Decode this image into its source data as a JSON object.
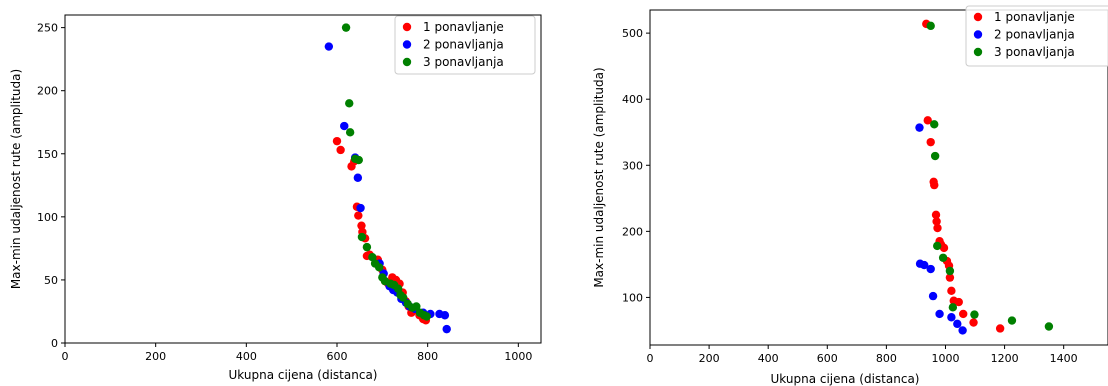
{
  "chart_data": [
    {
      "type": "scatter",
      "xlabel": "Ukupna cijena (distanca)",
      "ylabel": "Max-min udaljenost rute (amplituda)",
      "xlim": [
        0,
        1050
      ],
      "ylim": [
        0,
        260
      ],
      "xticks": [
        0,
        200,
        400,
        600,
        800,
        1000
      ],
      "yticks": [
        0,
        50,
        100,
        150,
        200,
        250
      ],
      "grid": false,
      "legend_position": "top-right",
      "series": [
        {
          "name": "1 ponavljanje",
          "color": "#ff0000",
          "points": [
            [
              600,
              160
            ],
            [
              608,
              153
            ],
            [
              632,
              140
            ],
            [
              638,
              144
            ],
            [
              644,
              108
            ],
            [
              647,
              101
            ],
            [
              654,
              93
            ],
            [
              656,
              88
            ],
            [
              662,
              83
            ],
            [
              666,
              69
            ],
            [
              672,
              70
            ],
            [
              690,
              66
            ],
            [
              700,
              58
            ],
            [
              706,
              49
            ],
            [
              713,
              47
            ],
            [
              722,
              52
            ],
            [
              730,
              50
            ],
            [
              738,
              47
            ],
            [
              745,
              40
            ],
            [
              752,
              33
            ],
            [
              758,
              29
            ],
            [
              764,
              24
            ],
            [
              773,
              26
            ],
            [
              782,
              22
            ],
            [
              790,
              19
            ],
            [
              796,
              18
            ]
          ]
        },
        {
          "name": "2 ponavljanja",
          "color": "#0000ff",
          "points": [
            [
              582,
              235
            ],
            [
              616,
              172
            ],
            [
              640,
              147
            ],
            [
              646,
              131
            ],
            [
              652,
              107
            ],
            [
              694,
              63
            ],
            [
              703,
              55
            ],
            [
              716,
              45
            ],
            [
              724,
              42
            ],
            [
              733,
              40
            ],
            [
              742,
              35
            ],
            [
              752,
              32
            ],
            [
              760,
              29
            ],
            [
              772,
              27
            ],
            [
              790,
              24
            ],
            [
              806,
              23
            ],
            [
              826,
              23
            ],
            [
              838,
              22
            ],
            [
              842,
              11
            ]
          ]
        },
        {
          "name": "3 ponavljanja",
          "color": "#008000",
          "points": [
            [
              620,
              250
            ],
            [
              627,
              190
            ],
            [
              629,
              167
            ],
            [
              640,
              146
            ],
            [
              648,
              145
            ],
            [
              655,
              84
            ],
            [
              666,
              76
            ],
            [
              678,
              68
            ],
            [
              684,
              63
            ],
            [
              693,
              60
            ],
            [
              700,
              52
            ],
            [
              706,
              49
            ],
            [
              718,
              47
            ],
            [
              726,
              46
            ],
            [
              735,
              43
            ],
            [
              740,
              38
            ],
            [
              746,
              36
            ],
            [
              756,
              31
            ],
            [
              766,
              28
            ],
            [
              775,
              29
            ],
            [
              783,
              24
            ],
            [
              792,
              22
            ],
            [
              798,
              21
            ]
          ]
        }
      ]
    },
    {
      "type": "scatter",
      "xlabel": "Ukupna cijena (distanca)",
      "ylabel": "Max-min udaljenost rute (amplituda)",
      "xlim": [
        0,
        1550
      ],
      "ylim": [
        28,
        535
      ],
      "xticks": [
        0,
        200,
        400,
        600,
        800,
        1000,
        1200,
        1400
      ],
      "yticks": [
        100,
        200,
        300,
        400,
        500
      ],
      "grid": false,
      "legend_position": "top-right",
      "series": [
        {
          "name": "1 ponavljanje",
          "color": "#ff0000",
          "points": [
            [
              935,
              514
            ],
            [
              940,
              368
            ],
            [
              950,
              335
            ],
            [
              960,
              275
            ],
            [
              962,
              270
            ],
            [
              968,
              225
            ],
            [
              970,
              215
            ],
            [
              973,
              205
            ],
            [
              980,
              185
            ],
            [
              985,
              180
            ],
            [
              995,
              175
            ],
            [
              1005,
              155
            ],
            [
              1012,
              148
            ],
            [
              1015,
              130
            ],
            [
              1020,
              110
            ],
            [
              1028,
              95
            ],
            [
              1045,
              93
            ],
            [
              1060,
              75
            ],
            [
              1095,
              62
            ],
            [
              1185,
              53
            ]
          ]
        },
        {
          "name": "2 ponavljanja",
          "color": "#0000ff",
          "points": [
            [
              912,
              357
            ],
            [
              914,
              151
            ],
            [
              928,
              149
            ],
            [
              950,
              143
            ],
            [
              958,
              102
            ],
            [
              980,
              75
            ],
            [
              1020,
              70
            ],
            [
              1040,
              60
            ],
            [
              1058,
              50
            ]
          ]
        },
        {
          "name": "3 ponavljanja",
          "color": "#008000",
          "points": [
            [
              950,
              511
            ],
            [
              962,
              362
            ],
            [
              965,
              314
            ],
            [
              972,
              178
            ],
            [
              992,
              160
            ],
            [
              1015,
              140
            ],
            [
              1025,
              85
            ],
            [
              1098,
              74
            ],
            [
              1225,
              65
            ],
            [
              1350,
              56
            ]
          ]
        }
      ]
    }
  ]
}
